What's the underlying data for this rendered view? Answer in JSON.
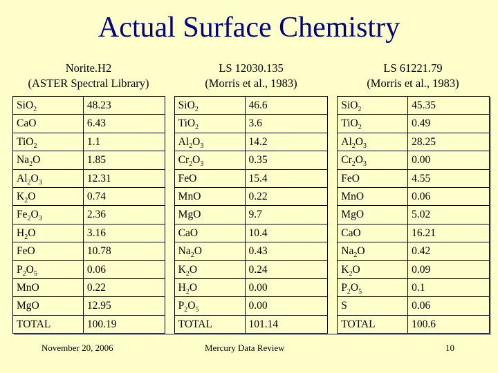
{
  "slide": {
    "title": "Actual Surface Chemistry"
  },
  "samples": [
    {
      "name": "Norite.H2",
      "source": "(ASTER Spectral Library)"
    },
    {
      "name": "LS 12030.135",
      "source": "(Morris et al., 1983)"
    },
    {
      "name": "LS 61221.79",
      "source": "(Morris et al., 1983)"
    }
  ],
  "tables": [
    [
      [
        "SiO2",
        "48.23"
      ],
      [
        "CaO",
        "6.43"
      ],
      [
        "TiO2",
        "1.1"
      ],
      [
        "Na2O",
        "1.85"
      ],
      [
        "Al2O3",
        "12.31"
      ],
      [
        "K2O",
        "0.74"
      ],
      [
        "Fe2O3",
        "2.36"
      ],
      [
        "H2O",
        "3.16"
      ],
      [
        "FeO",
        "10.78"
      ],
      [
        "P2O5",
        "0.06"
      ],
      [
        "MnO",
        "0.22"
      ],
      [
        "MgO",
        "12.95"
      ],
      [
        "TOTAL",
        "100.19"
      ]
    ],
    [
      [
        "SiO2",
        "46.6"
      ],
      [
        "TiO2",
        "3.6"
      ],
      [
        "Al2O3",
        "14.2"
      ],
      [
        "Cr2O3",
        "0.35"
      ],
      [
        "FeO",
        "15.4"
      ],
      [
        "MnO",
        "0.22"
      ],
      [
        "MgO",
        "9.7"
      ],
      [
        "CaO",
        "10.4"
      ],
      [
        "Na2O",
        "0.43"
      ],
      [
        "K2O",
        "0.24"
      ],
      [
        "H2O",
        "0.00"
      ],
      [
        "P2O5",
        "0.00"
      ],
      [
        "TOTAL",
        "101.14"
      ]
    ],
    [
      [
        "SiO2",
        "45.35"
      ],
      [
        "TiO2",
        "0.49"
      ],
      [
        "Al2O3",
        "28.25"
      ],
      [
        "Cr2O3",
        "0.00"
      ],
      [
        "FeO",
        "4.55"
      ],
      [
        "MnO",
        "0.06"
      ],
      [
        "MgO",
        "5.02"
      ],
      [
        "CaO",
        "16.21"
      ],
      [
        "Na2O",
        "0.42"
      ],
      [
        "K2O",
        "0.09"
      ],
      [
        "P2O5",
        "0.1"
      ],
      [
        "S",
        "0.06"
      ],
      [
        "TOTAL",
        "100.6"
      ]
    ]
  ],
  "footer": {
    "date": "November 20, 2006",
    "center": "Mercury Data Review",
    "page": "10"
  }
}
